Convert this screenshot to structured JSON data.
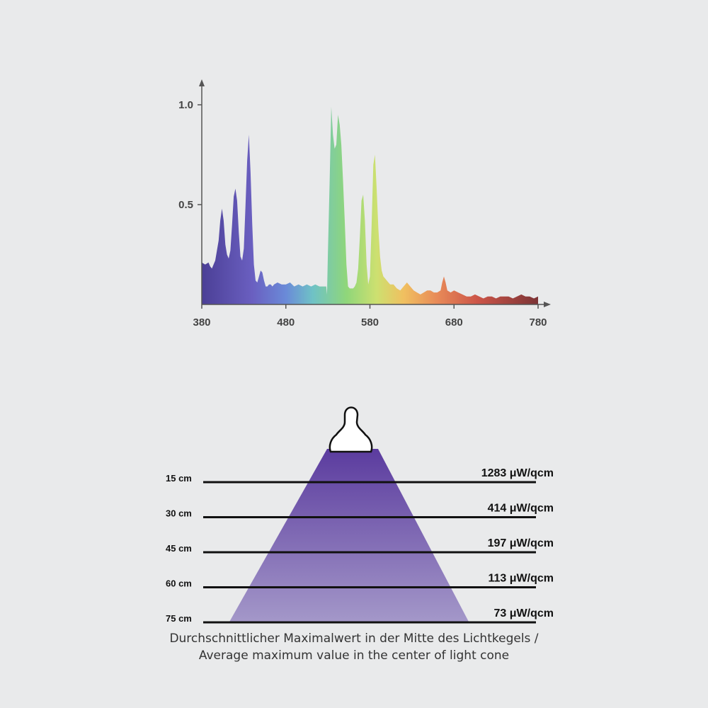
{
  "chart_data": [
    {
      "type": "area",
      "title": "",
      "xlabel": "",
      "ylabel": "",
      "xlim": [
        380,
        780
      ],
      "ylim": [
        0,
        1.0
      ],
      "x_ticks": [
        "380",
        "480",
        "580",
        "680",
        "780"
      ],
      "y_ticks": [
        "0.5",
        "1.0"
      ],
      "grid": false,
      "series": [
        {
          "x": [
            380,
            384,
            388,
            390,
            392,
            396,
            400,
            402,
            404,
            406,
            408,
            410,
            412,
            414,
            416,
            418,
            420,
            422,
            424,
            426,
            428,
            430,
            432,
            434,
            436,
            438,
            440,
            442,
            444,
            446,
            448,
            450,
            452,
            454,
            456,
            458,
            460,
            462,
            464,
            466,
            470,
            475,
            480,
            485,
            490,
            495,
            500,
            505,
            510,
            515,
            520,
            525,
            528,
            529,
            530,
            532,
            534,
            536,
            538,
            540,
            542,
            544,
            546,
            548,
            550,
            552,
            554,
            556,
            558,
            560,
            562,
            564,
            566,
            568,
            570,
            572,
            574,
            576,
            578,
            580,
            582,
            584,
            586,
            588,
            590,
            592,
            594,
            596,
            598,
            600,
            604,
            608,
            612,
            616,
            620,
            624,
            628,
            632,
            636,
            640,
            644,
            648,
            652,
            656,
            660,
            664,
            666,
            668,
            670,
            672,
            676,
            680,
            685,
            690,
            695,
            700,
            705,
            710,
            715,
            720,
            725,
            730,
            735,
            740,
            745,
            750,
            755,
            760,
            765,
            770,
            775,
            780
          ],
          "y": [
            0.21,
            0.2,
            0.21,
            0.19,
            0.18,
            0.22,
            0.32,
            0.42,
            0.48,
            0.42,
            0.3,
            0.25,
            0.23,
            0.27,
            0.4,
            0.54,
            0.58,
            0.52,
            0.36,
            0.24,
            0.22,
            0.28,
            0.5,
            0.72,
            0.85,
            0.66,
            0.4,
            0.2,
            0.12,
            0.11,
            0.14,
            0.17,
            0.16,
            0.12,
            0.09,
            0.09,
            0.1,
            0.1,
            0.09,
            0.1,
            0.11,
            0.1,
            0.1,
            0.11,
            0.09,
            0.1,
            0.09,
            0.1,
            0.09,
            0.1,
            0.09,
            0.09,
            0.09,
            0.05,
            0.25,
            0.6,
            0.99,
            0.85,
            0.78,
            0.8,
            0.95,
            0.9,
            0.8,
            0.62,
            0.42,
            0.2,
            0.09,
            0.08,
            0.08,
            0.08,
            0.09,
            0.11,
            0.18,
            0.34,
            0.52,
            0.55,
            0.42,
            0.2,
            0.1,
            0.14,
            0.4,
            0.7,
            0.75,
            0.58,
            0.38,
            0.24,
            0.17,
            0.14,
            0.13,
            0.12,
            0.1,
            0.1,
            0.08,
            0.07,
            0.09,
            0.11,
            0.09,
            0.07,
            0.06,
            0.05,
            0.06,
            0.07,
            0.07,
            0.06,
            0.06,
            0.07,
            0.11,
            0.14,
            0.11,
            0.07,
            0.06,
            0.07,
            0.06,
            0.05,
            0.04,
            0.04,
            0.05,
            0.04,
            0.03,
            0.04,
            0.04,
            0.03,
            0.04,
            0.04,
            0.04,
            0.03,
            0.04,
            0.05,
            0.04,
            0.04,
            0.03,
            0.04
          ]
        }
      ]
    },
    {
      "type": "table",
      "rows": [
        {
          "distance": "15 cm",
          "value": "1283 μW/qcm"
        },
        {
          "distance": "30 cm",
          "value": "414 μW/qcm"
        },
        {
          "distance": "45 cm",
          "value": "197 μW/qcm"
        },
        {
          "distance": "60 cm",
          "value": "113 μW/qcm"
        },
        {
          "distance": "75 cm",
          "value": "73 μW/qcm"
        }
      ],
      "colors": {
        "cone_top": "#5a3a9e",
        "cone_bottom": "#a498c9",
        "bulb": "#ffffff"
      }
    }
  ],
  "caption": {
    "line1": "Durchschnittlicher Maximalwert in der Mitte des Lichtkegels /",
    "line2": "Average maximum value in the center of light cone"
  }
}
